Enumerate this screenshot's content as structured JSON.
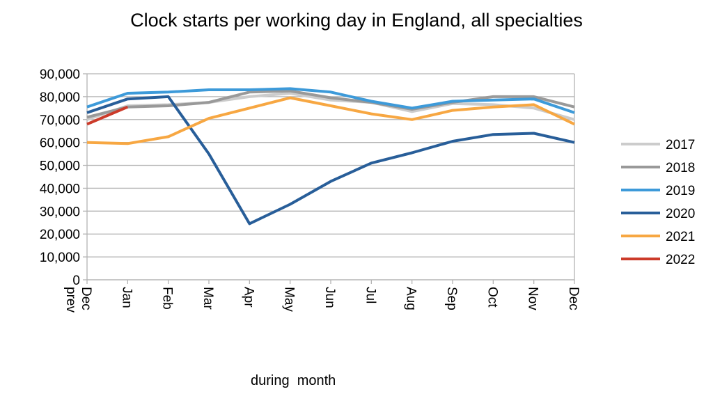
{
  "chart_data": {
    "type": "line",
    "title": "Clock starts per working day in England, all specialties",
    "xlabel": "during  month",
    "ylabel": "",
    "ylim": [
      0,
      90000
    ],
    "yticks": [
      "0",
      "10,000",
      "20,000",
      "30,000",
      "40,000",
      "50,000",
      "60,000",
      "70,000",
      "80,000",
      "90,000"
    ],
    "categories": [
      "Dec prev",
      "Jan",
      "Feb",
      "Mar",
      "Apr",
      "May",
      "Jun",
      "Jul",
      "Aug",
      "Sep",
      "Oct",
      "Nov",
      "Dec"
    ],
    "grid": "horizontal",
    "legend_position": "right",
    "series": [
      {
        "name": "2017",
        "color": "#cccccc",
        "values": [
          70000,
          76000,
          76500,
          77500,
          80000,
          81500,
          78500,
          77500,
          73500,
          77000,
          76500,
          75000,
          70000
        ]
      },
      {
        "name": "2018",
        "color": "#999999",
        "values": [
          71000,
          75500,
          76000,
          77500,
          82000,
          82500,
          79500,
          77500,
          74500,
          77500,
          80000,
          80000,
          75500
        ]
      },
      {
        "name": "2019",
        "color": "#3d9ad9",
        "values": [
          75500,
          81500,
          82000,
          83000,
          83000,
          83500,
          82000,
          78000,
          75000,
          78000,
          78500,
          79000,
          73000
        ]
      },
      {
        "name": "2020",
        "color": "#285e99",
        "values": [
          73000,
          79000,
          80000,
          55000,
          24500,
          33000,
          43000,
          51000,
          55500,
          60500,
          63500,
          64000,
          60000
        ]
      },
      {
        "name": "2021",
        "color": "#f7a742",
        "values": [
          60000,
          59500,
          62500,
          70500,
          75000,
          79500,
          76000,
          72500,
          70000,
          74000,
          75500,
          76500,
          68000
        ]
      },
      {
        "name": "2022",
        "color": "#cc3b2a",
        "values": [
          68000,
          75500,
          null,
          null,
          null,
          null,
          null,
          null,
          null,
          null,
          null,
          null,
          null
        ]
      }
    ]
  }
}
